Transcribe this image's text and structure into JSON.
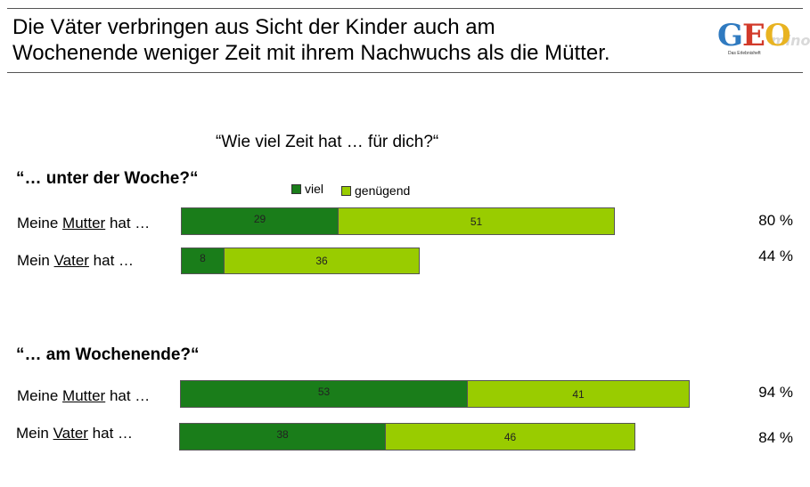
{
  "header": {
    "title_line1": "Die Väter verbringen aus Sicht der Kinder auch am",
    "title_line2": "Wochenende weniger Zeit mit ihrem Nachwuchs als die Mütter."
  },
  "logo": {
    "letters": [
      "G",
      "E",
      "O"
    ],
    "mini": "mino",
    "sub": "Das Erlebnisheft"
  },
  "colors": {
    "viel": "#1a7d1a",
    "genuegend": "#99cc00"
  },
  "chart_data": {
    "type": "bar",
    "orientation": "horizontal",
    "stacked": true,
    "question": "“Wie viel Zeit hat … für dich?“",
    "legend": [
      "viel",
      "genügend"
    ],
    "groups": [
      {
        "title": "“… unter der Woche?“",
        "rows": [
          {
            "label_pre": "Meine ",
            "label_u": "Mutter",
            "label_post": " hat …",
            "values": [
              29,
              51
            ],
            "total": "80 %"
          },
          {
            "label_pre": "Mein ",
            "label_u": "Vater",
            "label_post": " hat …",
            "values": [
              8,
              36
            ],
            "total": "44 %"
          }
        ]
      },
      {
        "title": "“… am Wochenende?“",
        "rows": [
          {
            "label_pre": "Meine ",
            "label_u": "Mutter",
            "label_post": " hat …",
            "values": [
              53,
              41
            ],
            "total": "94 %"
          },
          {
            "label_pre": "Mein ",
            "label_u": "Vater",
            "label_post": " hat …",
            "values": [
              38,
              46
            ],
            "total": "84 %"
          }
        ]
      }
    ],
    "series": [
      {
        "name": "viel",
        "values": [
          29,
          8,
          53,
          38
        ]
      },
      {
        "name": "genügend",
        "values": [
          51,
          36,
          41,
          46
        ]
      }
    ],
    "categories": [
      "Meine Mutter hat … (Woche)",
      "Mein Vater hat … (Woche)",
      "Meine Mutter hat … (Wochenende)",
      "Mein Vater hat … (Wochenende)"
    ],
    "xlim": [
      0,
      100
    ]
  }
}
